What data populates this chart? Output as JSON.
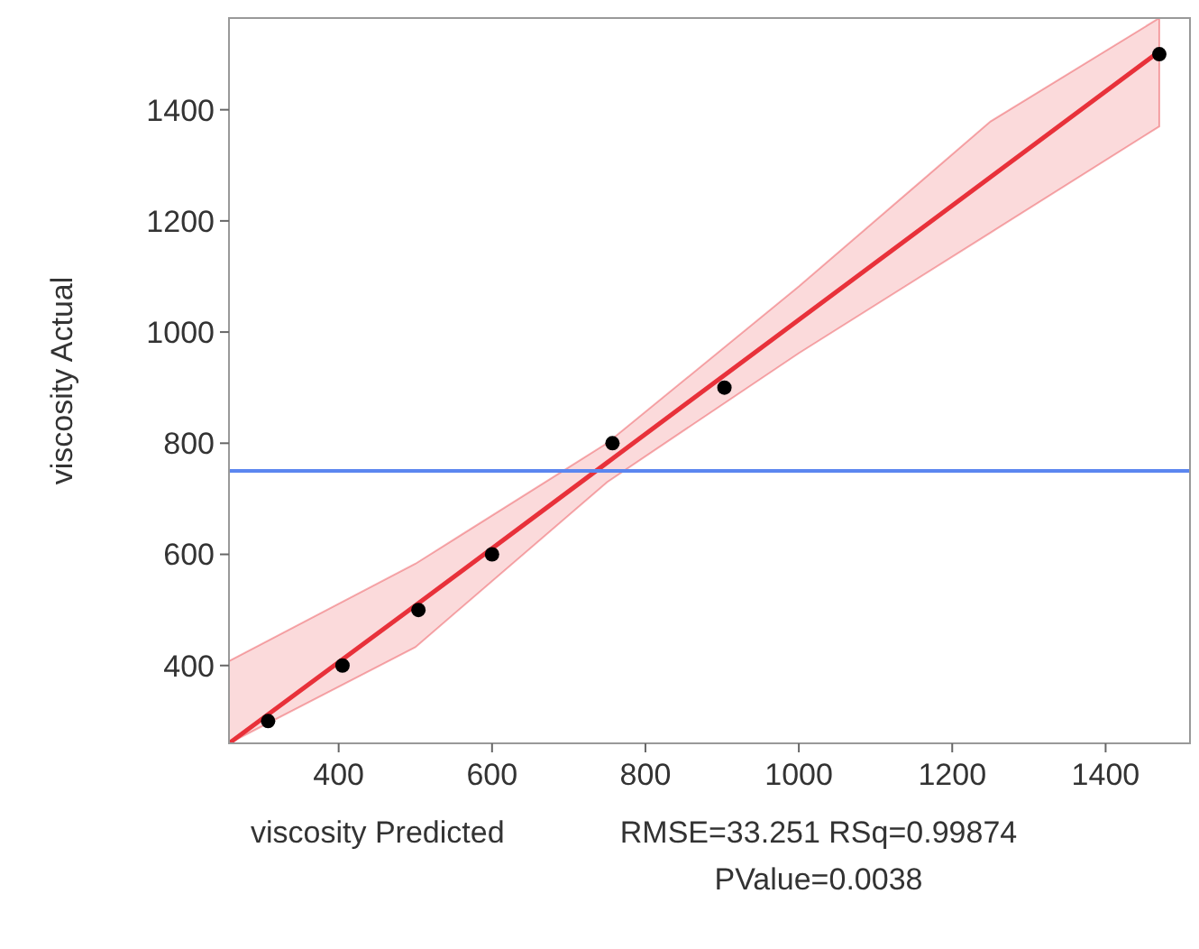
{
  "chart_data": {
    "type": "scatter",
    "xlabel": "viscosity Predicted",
    "ylabel": "viscosity Actual",
    "annotations": [
      "RMSE=33.251 RSq=0.99874",
      "PValue=0.0038"
    ],
    "xlim": [
      257,
      1510
    ],
    "ylim": [
      260,
      1565
    ],
    "xticks": [
      400,
      600,
      800,
      1000,
      1200,
      1400
    ],
    "yticks": [
      400,
      600,
      800,
      1000,
      1200,
      1400
    ],
    "grid": false,
    "series": [
      {
        "type": "line",
        "color": "#e8313a",
        "x": [
          257,
          500,
          750,
          1000,
          1250,
          1470
        ],
        "values": [
          260,
          508,
          765,
          1022,
          1279,
          1505
        ],
        "lower": [
          260,
          433,
          730,
          962,
          1179,
          1370
        ],
        "upper": [
          408,
          583,
          800,
          1082,
          1379,
          1565
        ]
      },
      {
        "marker": "circle",
        "color": "#000000",
        "x": [
          308,
          405,
          504,
          600,
          757,
          903,
          1470
        ],
        "values": [
          300,
          400,
          500,
          600,
          800,
          900,
          1500
        ]
      }
    ],
    "ref_lines": [
      {
        "axis": "y",
        "value": 750,
        "color": "#5b86f0"
      }
    ]
  }
}
